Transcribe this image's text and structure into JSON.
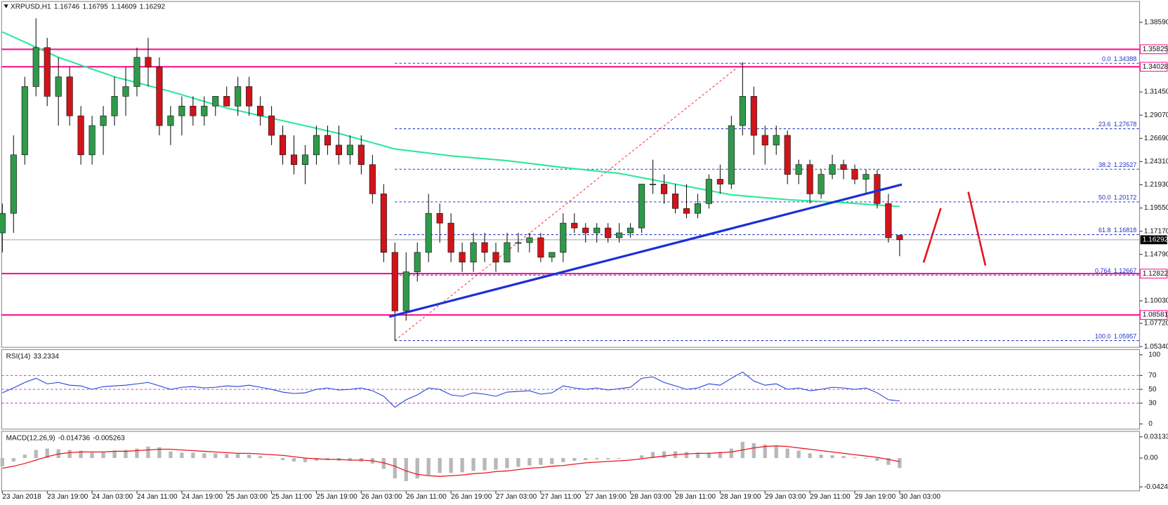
{
  "chart_data": {
    "type": "candlestick",
    "title": "XRPUSD,H1",
    "colors": {
      "up": "#2f9a4a",
      "down": "#d0141a",
      "ma": "#2ee89a",
      "trend": "#1a2fd8",
      "level": "#ff1493",
      "fib": "#2030c8",
      "fib_diagonal": "#ff3030",
      "rsi": "#1f3fd8",
      "macd": "#b8b8b8",
      "signal": "#e8161c"
    },
    "candles": {
      "open": [
        1.17,
        1.19,
        1.25,
        1.32,
        1.36,
        1.31,
        1.33,
        1.29,
        1.25,
        1.28,
        1.29,
        1.31,
        1.32,
        1.35,
        1.34,
        1.28,
        1.29,
        1.3,
        1.29,
        1.3,
        1.31,
        1.3,
        1.32,
        1.3,
        1.29,
        1.27,
        1.25,
        1.24,
        1.25,
        1.27,
        1.26,
        1.25,
        1.26,
        1.24,
        1.21,
        1.15,
        1.09,
        1.13,
        1.15,
        1.19,
        1.18,
        1.15,
        1.14,
        1.16,
        1.15,
        1.14,
        1.16,
        1.16,
        1.165,
        1.145,
        1.15,
        1.18,
        1.175,
        1.17,
        1.175,
        1.165,
        1.17,
        1.175,
        1.22,
        1.22,
        1.21,
        1.195,
        1.19,
        1.2,
        1.225,
        1.22,
        1.28,
        1.31,
        1.27,
        1.26,
        1.27,
        1.23,
        1.24,
        1.21,
        1.23,
        1.24,
        1.235,
        1.225,
        1.23,
        1.2,
        1.16746
      ],
      "high": [
        1.2,
        1.27,
        1.33,
        1.39,
        1.37,
        1.35,
        1.34,
        1.3,
        1.29,
        1.3,
        1.33,
        1.34,
        1.36,
        1.37,
        1.35,
        1.3,
        1.31,
        1.31,
        1.31,
        1.31,
        1.32,
        1.33,
        1.33,
        1.31,
        1.3,
        1.28,
        1.27,
        1.26,
        1.28,
        1.28,
        1.28,
        1.27,
        1.27,
        1.25,
        1.22,
        1.16,
        1.15,
        1.16,
        1.21,
        1.2,
        1.19,
        1.16,
        1.17,
        1.17,
        1.16,
        1.17,
        1.17,
        1.17,
        1.17,
        1.15,
        1.19,
        1.19,
        1.18,
        1.18,
        1.18,
        1.18,
        1.18,
        1.22,
        1.245,
        1.23,
        1.22,
        1.22,
        1.21,
        1.23,
        1.24,
        1.29,
        1.345,
        1.32,
        1.28,
        1.28,
        1.275,
        1.245,
        1.245,
        1.235,
        1.25,
        1.245,
        1.24,
        1.235,
        1.235,
        1.21,
        1.16795
      ],
      "low": [
        1.15,
        1.17,
        1.24,
        1.31,
        1.3,
        1.28,
        1.28,
        1.24,
        1.24,
        1.25,
        1.28,
        1.29,
        1.31,
        1.32,
        1.27,
        1.26,
        1.27,
        1.28,
        1.28,
        1.29,
        1.3,
        1.29,
        1.29,
        1.28,
        1.26,
        1.24,
        1.23,
        1.22,
        1.24,
        1.25,
        1.24,
        1.24,
        1.23,
        1.2,
        1.14,
        1.0596,
        1.08,
        1.12,
        1.14,
        1.16,
        1.14,
        1.13,
        1.13,
        1.14,
        1.13,
        1.14,
        1.15,
        1.15,
        1.14,
        1.14,
        1.14,
        1.17,
        1.16,
        1.16,
        1.16,
        1.16,
        1.165,
        1.17,
        1.21,
        1.2,
        1.19,
        1.185,
        1.185,
        1.195,
        1.21,
        1.215,
        1.27,
        1.25,
        1.24,
        1.25,
        1.22,
        1.22,
        1.2,
        1.205,
        1.225,
        1.225,
        1.22,
        1.21,
        1.195,
        1.16,
        1.14609
      ],
      "close": [
        1.19,
        1.25,
        1.32,
        1.36,
        1.31,
        1.33,
        1.29,
        1.25,
        1.28,
        1.29,
        1.31,
        1.32,
        1.35,
        1.34,
        1.28,
        1.29,
        1.3,
        1.29,
        1.3,
        1.31,
        1.3,
        1.32,
        1.3,
        1.29,
        1.27,
        1.25,
        1.24,
        1.25,
        1.27,
        1.26,
        1.25,
        1.26,
        1.24,
        1.21,
        1.15,
        1.09,
        1.13,
        1.15,
        1.19,
        1.18,
        1.15,
        1.14,
        1.16,
        1.15,
        1.14,
        1.16,
        1.16,
        1.165,
        1.145,
        1.15,
        1.18,
        1.175,
        1.17,
        1.175,
        1.165,
        1.17,
        1.175,
        1.22,
        1.22,
        1.21,
        1.195,
        1.19,
        1.2,
        1.225,
        1.22,
        1.28,
        1.31,
        1.27,
        1.26,
        1.27,
        1.23,
        1.24,
        1.21,
        1.23,
        1.24,
        1.235,
        1.225,
        1.23,
        1.2,
        1.165,
        1.16292
      ]
    },
    "ylim": [
      1.05264,
      1.40725
    ],
    "yticks": [
      {
        "value": 1.3859,
        "label": "1.38590"
      },
      {
        "value": 1.3145,
        "label": "1.31450"
      },
      {
        "value": 1.2907,
        "label": "1.29070"
      },
      {
        "value": 1.2669,
        "label": "1.26690"
      },
      {
        "value": 1.2431,
        "label": "1.24310"
      },
      {
        "value": 1.2193,
        "label": "1.21930"
      },
      {
        "value": 1.1955,
        "label": "1.19550"
      },
      {
        "value": 1.1717,
        "label": "1.17170"
      },
      {
        "value": 1.1479,
        "label": "1.14790"
      },
      {
        "value": 1.1003,
        "label": "1.10030"
      },
      {
        "value": 1.0772,
        "label": "1.07720"
      },
      {
        "value": 1.0534,
        "label": "1.05340"
      }
    ],
    "xticks": [
      {
        "value": 0,
        "label": "23 Jan 2018"
      },
      {
        "value": 4,
        "label": "23 Jan 19:00"
      },
      {
        "value": 8,
        "label": "24 Jan 03:00"
      },
      {
        "value": 12,
        "label": "24 Jan 11:00"
      },
      {
        "value": 16,
        "label": "24 Jan 19:00"
      },
      {
        "value": 20,
        "label": "25 Jan 03:00"
      },
      {
        "value": 24,
        "label": "25 Jan 11:00"
      },
      {
        "value": 28,
        "label": "25 Jan 19:00"
      },
      {
        "value": 32,
        "label": "26 Jan 03:00"
      },
      {
        "value": 36,
        "label": "26 Jan 11:00"
      },
      {
        "value": 40,
        "label": "26 Jan 19:00"
      },
      {
        "value": 44,
        "label": "27 Jan 03:00"
      },
      {
        "value": 48,
        "label": "27 Jan 11:00"
      },
      {
        "value": 52,
        "label": "27 Jan 19:00"
      },
      {
        "value": 56,
        "label": "28 Jan 03:00"
      },
      {
        "value": 60,
        "label": "28 Jan 11:00"
      },
      {
        "value": 64,
        "label": "28 Jan 19:00"
      },
      {
        "value": 68,
        "label": "29 Jan 03:00"
      },
      {
        "value": 72,
        "label": "29 Jan 11:00"
      },
      {
        "value": 76,
        "label": "29 Jan 19:00"
      },
      {
        "value": 80,
        "label": "30 Jan 03:00"
      }
    ],
    "ma": {
      "x": [
        0,
        5,
        10,
        15,
        20,
        25,
        30,
        35,
        40,
        45,
        50,
        55,
        60,
        65,
        70,
        75,
        80
      ],
      "values": [
        1.376,
        1.35,
        1.33,
        1.315,
        1.298,
        1.285,
        1.272,
        1.256,
        1.249,
        1.244,
        1.237,
        1.231,
        1.22,
        1.209,
        1.204,
        1.201,
        1.197
      ]
    },
    "trendline": {
      "x": [
        34.5,
        80.2
      ],
      "values": [
        1.084,
        1.2196
      ]
    },
    "levels": [
      1.35825,
      1.34028,
      1.12822,
      1.08581
    ],
    "fib": {
      "x": [
        35,
        66
      ],
      "levels": [
        {
          "ratio": "0.0",
          "value": 1.34388
        },
        {
          "ratio": "23.6",
          "value": 1.27678
        },
        {
          "ratio": "38.2",
          "value": 1.23527
        },
        {
          "ratio": "50.0",
          "value": 1.20172
        },
        {
          "ratio": "61.8",
          "value": 1.16818
        },
        {
          "ratio": "0.764",
          "value": 1.12667
        },
        {
          "ratio": "100.0",
          "value": 1.05957
        }
      ]
    },
    "rsi": {
      "name": "RSI(14)",
      "ylim": [
        0,
        100
      ],
      "yticks": [
        0,
        30,
        50,
        70,
        100
      ],
      "levels": [
        30,
        50,
        70
      ],
      "values": [
        45,
        52,
        60,
        66,
        58,
        60,
        56,
        55,
        50,
        54,
        55,
        56,
        58,
        60,
        55,
        50,
        53,
        54,
        52,
        53,
        55,
        54,
        56,
        53,
        50,
        46,
        44,
        45,
        50,
        52,
        49,
        50,
        52,
        48,
        40,
        24,
        35,
        42,
        52,
        50,
        42,
        40,
        45,
        43,
        40,
        46,
        47,
        48,
        43,
        45,
        55,
        52,
        50,
        52,
        49,
        51,
        53,
        66,
        68,
        60,
        55,
        50,
        52,
        58,
        56,
        66,
        75,
        62,
        56,
        58,
        50,
        52,
        48,
        50,
        53,
        52,
        50,
        52,
        45,
        35,
        33.2334
      ]
    },
    "macd": {
      "name": "MACD(12,26,9)",
      "ylim": [
        -0.0484,
        0.0394
      ],
      "yticks": [
        0.031334,
        {
          "value": 0,
          "label": "0.00"
        },
        -0.042443
      ],
      "values": [
        -0.012,
        -0.005,
        0.005,
        0.012,
        0.014,
        0.013,
        0.012,
        0.011,
        0.008,
        0.009,
        0.011,
        0.012,
        0.014,
        0.017,
        0.016,
        0.01,
        0.008,
        0.008,
        0.007,
        0.007,
        0.006,
        0.006,
        0.005,
        0.003,
        0.0,
        -0.003,
        -0.005,
        -0.006,
        -0.004,
        -0.003,
        -0.004,
        -0.004,
        -0.005,
        -0.008,
        -0.016,
        -0.03,
        -0.034,
        -0.03,
        -0.025,
        -0.022,
        -0.022,
        -0.021,
        -0.019,
        -0.018,
        -0.017,
        -0.015,
        -0.013,
        -0.011,
        -0.01,
        -0.009,
        -0.006,
        -0.004,
        -0.003,
        -0.002,
        -0.002,
        -0.001,
        0.0,
        0.004,
        0.009,
        0.01,
        0.01,
        0.009,
        0.008,
        0.008,
        0.009,
        0.014,
        0.024,
        0.022,
        0.02,
        0.018,
        0.014,
        0.011,
        0.007,
        0.005,
        0.004,
        0.003,
        0.001,
        -0.001,
        -0.004,
        -0.01,
        -0.014736
      ],
      "signal": [
        -0.015,
        -0.012,
        -0.008,
        -0.003,
        0.002,
        0.006,
        0.008,
        0.009,
        0.009,
        0.009,
        0.01,
        0.01,
        0.011,
        0.012,
        0.013,
        0.013,
        0.012,
        0.011,
        0.01,
        0.009,
        0.008,
        0.007,
        0.007,
        0.006,
        0.005,
        0.004,
        0.002,
        0.0,
        -0.001,
        -0.002,
        -0.002,
        -0.003,
        -0.003,
        -0.004,
        -0.007,
        -0.012,
        -0.019,
        -0.024,
        -0.026,
        -0.027,
        -0.026,
        -0.025,
        -0.023,
        -0.022,
        -0.02,
        -0.019,
        -0.017,
        -0.015,
        -0.014,
        -0.012,
        -0.011,
        -0.009,
        -0.007,
        -0.006,
        -0.005,
        -0.004,
        -0.003,
        -0.001,
        0.001,
        0.003,
        0.005,
        0.006,
        0.007,
        0.007,
        0.008,
        0.009,
        0.012,
        0.015,
        0.017,
        0.018,
        0.017,
        0.015,
        0.013,
        0.011,
        0.009,
        0.007,
        0.005,
        0.003,
        0.001,
        -0.002,
        -0.005263
      ]
    }
  }
}
